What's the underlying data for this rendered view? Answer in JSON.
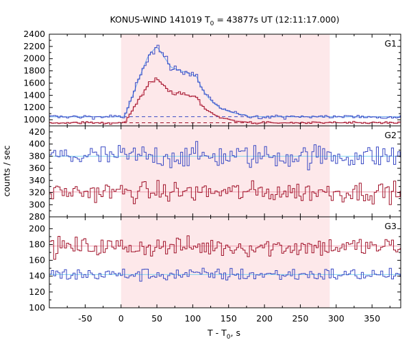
{
  "chart_data": {
    "type": "line",
    "title": "KONUS-WIND 141019 T",
    "title_sub": "0",
    "title_rest": " = 43877s UT (12:11:17.000)",
    "xlabel": "T - T",
    "xlabel_sub": "0",
    "xlabel_suffix": ", s",
    "ylabel": "counts / sec",
    "xlim": [
      -100,
      390
    ],
    "xticks": [
      -50,
      0,
      50,
      100,
      150,
      200,
      250,
      300,
      350
    ],
    "highlight_region": {
      "x0": 0,
      "x1": 291,
      "color": "#fde8ea"
    },
    "panels": [
      {
        "name": "G1",
        "ylim": [
          900,
          2400
        ],
        "yticks": [
          1000,
          1200,
          1400,
          1600,
          1800,
          2000,
          2200,
          2400
        ],
        "background_lines": [
          {
            "y": 1050,
            "color": "#3848c4",
            "dash": true
          },
          {
            "y": 950,
            "color": "#a01028",
            "dash": true
          }
        ],
        "series": [
          {
            "color": "#3848c4",
            "base": 1050,
            "noise": 22,
            "burst": "main",
            "amp": 1150,
            "fit_color": "#7fb3ef"
          },
          {
            "color": "#a01028",
            "base": 950,
            "noise": 14,
            "burst": "main",
            "amp": 720,
            "fit_color": "#f0a0b0"
          }
        ]
      },
      {
        "name": "G2",
        "ylim": [
          280,
          430
        ],
        "yticks": [
          280,
          300,
          320,
          340,
          360,
          380,
          400,
          420
        ],
        "series": [
          {
            "color": "#3848c4",
            "base": 380,
            "noise": 14,
            "fit": 380,
            "fit_color": "#7fd4ef"
          },
          {
            "color": "#a01028",
            "base": 321,
            "noise": 12,
            "fit": 321,
            "fit_color": "#f0a0b0"
          }
        ]
      },
      {
        "name": "G3",
        "ylim": [
          100,
          215
        ],
        "yticks": [
          100,
          120,
          140,
          160,
          180,
          200
        ],
        "series": [
          {
            "color": "#a01028",
            "base": 177,
            "noise": 9,
            "fit": 178,
            "fit_color": "#f0a0b0"
          },
          {
            "color": "#3848c4",
            "base": 142,
            "noise": 6,
            "fit": 142,
            "fit_color": "#7fd4ef"
          }
        ]
      }
    ]
  }
}
